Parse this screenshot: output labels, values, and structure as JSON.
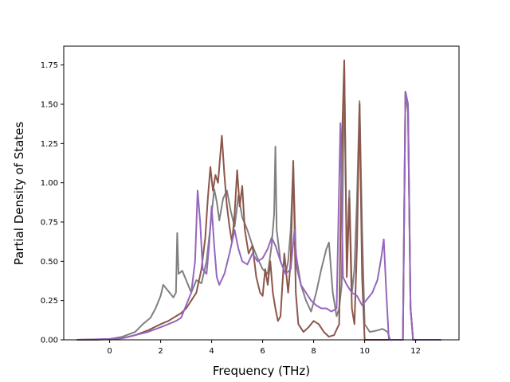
{
  "chart_data": {
    "type": "line",
    "title": "",
    "xlabel": "Frequency (THz)",
    "ylabel": "Partial Density of States",
    "xlim": [
      -1.8,
      13.7
    ],
    "ylim": [
      0,
      1.87
    ],
    "xticks": [
      0,
      2,
      4,
      6,
      8,
      10,
      12
    ],
    "yticks": [
      0.0,
      0.25,
      0.5,
      0.75,
      1.0,
      1.25,
      1.5,
      1.75
    ],
    "xtick_labels": [
      "0",
      "2",
      "4",
      "6",
      "8",
      "10",
      "12"
    ],
    "ytick_labels": [
      "0.00",
      "0.25",
      "0.50",
      "0.75",
      "1.00",
      "1.25",
      "1.50",
      "1.75"
    ],
    "grid": false,
    "legend": "none",
    "series": [
      {
        "color": "#808080",
        "points": [
          [
            -1.3,
            0
          ],
          [
            -0.5,
            0
          ],
          [
            0,
            0.005
          ],
          [
            0.5,
            0.02
          ],
          [
            1.0,
            0.05
          ],
          [
            1.3,
            0.1
          ],
          [
            1.6,
            0.14
          ],
          [
            1.8,
            0.2
          ],
          [
            2.0,
            0.28
          ],
          [
            2.1,
            0.35
          ],
          [
            2.3,
            0.31
          ],
          [
            2.5,
            0.27
          ],
          [
            2.6,
            0.3
          ],
          [
            2.65,
            0.68
          ],
          [
            2.7,
            0.42
          ],
          [
            2.85,
            0.44
          ],
          [
            3.0,
            0.38
          ],
          [
            3.2,
            0.3
          ],
          [
            3.4,
            0.38
          ],
          [
            3.6,
            0.36
          ],
          [
            3.8,
            0.5
          ],
          [
            3.95,
            0.72
          ],
          [
            4.1,
            0.96
          ],
          [
            4.2,
            0.88
          ],
          [
            4.3,
            0.76
          ],
          [
            4.45,
            0.9
          ],
          [
            4.6,
            0.95
          ],
          [
            4.75,
            0.82
          ],
          [
            4.9,
            0.72
          ],
          [
            5.05,
            0.92
          ],
          [
            5.2,
            0.78
          ],
          [
            5.4,
            0.7
          ],
          [
            5.6,
            0.6
          ],
          [
            5.8,
            0.52
          ],
          [
            6.0,
            0.45
          ],
          [
            6.2,
            0.42
          ],
          [
            6.35,
            0.6
          ],
          [
            6.45,
            0.8
          ],
          [
            6.5,
            1.23
          ],
          [
            6.55,
            0.7
          ],
          [
            6.7,
            0.5
          ],
          [
            6.9,
            0.42
          ],
          [
            7.0,
            0.5
          ],
          [
            7.1,
            0.7
          ],
          [
            7.2,
            1.12
          ],
          [
            7.3,
            0.55
          ],
          [
            7.5,
            0.35
          ],
          [
            7.7,
            0.25
          ],
          [
            7.9,
            0.18
          ],
          [
            8.1,
            0.3
          ],
          [
            8.3,
            0.45
          ],
          [
            8.5,
            0.58
          ],
          [
            8.6,
            0.62
          ],
          [
            8.75,
            0.3
          ],
          [
            8.9,
            0.15
          ],
          [
            9.0,
            0.2
          ],
          [
            9.1,
            0.35
          ],
          [
            9.2,
            1.75
          ],
          [
            9.3,
            0.5
          ],
          [
            9.4,
            0.95
          ],
          [
            9.5,
            0.3
          ],
          [
            9.6,
            0.45
          ],
          [
            9.7,
            0.9
          ],
          [
            9.8,
            1.52
          ],
          [
            9.9,
            0.7
          ],
          [
            10.0,
            0.1
          ],
          [
            10.2,
            0.05
          ],
          [
            10.5,
            0.06
          ],
          [
            10.7,
            0.07
          ],
          [
            10.9,
            0.05
          ],
          [
            11.0,
            0.0
          ],
          [
            11.5,
            0.0
          ],
          [
            11.6,
            1.58
          ],
          [
            11.7,
            1.45
          ],
          [
            11.8,
            0.2
          ],
          [
            11.9,
            0.0
          ],
          [
            13.0,
            0.0
          ]
        ]
      },
      {
        "color": "#8c564b",
        "points": [
          [
            -1.3,
            0
          ],
          [
            0,
            0.005
          ],
          [
            0.5,
            0.01
          ],
          [
            1.0,
            0.03
          ],
          [
            1.5,
            0.06
          ],
          [
            2.0,
            0.1
          ],
          [
            2.3,
            0.12
          ],
          [
            2.6,
            0.15
          ],
          [
            2.8,
            0.17
          ],
          [
            3.0,
            0.2
          ],
          [
            3.2,
            0.25
          ],
          [
            3.4,
            0.3
          ],
          [
            3.6,
            0.45
          ],
          [
            3.75,
            0.65
          ],
          [
            3.85,
            0.9
          ],
          [
            3.95,
            1.1
          ],
          [
            4.05,
            0.95
          ],
          [
            4.15,
            1.05
          ],
          [
            4.25,
            1.0
          ],
          [
            4.4,
            1.3
          ],
          [
            4.5,
            1.05
          ],
          [
            4.6,
            0.85
          ],
          [
            4.7,
            0.72
          ],
          [
            4.8,
            0.62
          ],
          [
            4.9,
            0.8
          ],
          [
            5.0,
            1.08
          ],
          [
            5.1,
            0.85
          ],
          [
            5.2,
            0.98
          ],
          [
            5.3,
            0.7
          ],
          [
            5.45,
            0.55
          ],
          [
            5.6,
            0.6
          ],
          [
            5.75,
            0.4
          ],
          [
            5.9,
            0.3
          ],
          [
            6.0,
            0.28
          ],
          [
            6.1,
            0.45
          ],
          [
            6.2,
            0.35
          ],
          [
            6.3,
            0.5
          ],
          [
            6.4,
            0.3
          ],
          [
            6.5,
            0.2
          ],
          [
            6.6,
            0.12
          ],
          [
            6.7,
            0.15
          ],
          [
            6.85,
            0.55
          ],
          [
            7.0,
            0.3
          ],
          [
            7.1,
            0.5
          ],
          [
            7.2,
            1.14
          ],
          [
            7.3,
            0.3
          ],
          [
            7.4,
            0.1
          ],
          [
            7.6,
            0.05
          ],
          [
            7.8,
            0.08
          ],
          [
            8.0,
            0.12
          ],
          [
            8.2,
            0.1
          ],
          [
            8.4,
            0.05
          ],
          [
            8.6,
            0.02
          ],
          [
            8.8,
            0.03
          ],
          [
            9.0,
            0.1
          ],
          [
            9.1,
            1.2
          ],
          [
            9.2,
            1.78
          ],
          [
            9.3,
            0.4
          ],
          [
            9.4,
            0.9
          ],
          [
            9.5,
            0.2
          ],
          [
            9.6,
            0.1
          ],
          [
            9.7,
            0.6
          ],
          [
            9.8,
            1.5
          ],
          [
            9.9,
            0.4
          ],
          [
            10.0,
            0.0
          ],
          [
            11.5,
            0.0
          ],
          [
            11.6,
            1.58
          ],
          [
            11.7,
            1.5
          ],
          [
            11.8,
            0.2
          ],
          [
            11.9,
            0.0
          ],
          [
            13.0,
            0.0
          ]
        ]
      },
      {
        "color": "#9467bd",
        "points": [
          [
            -1.3,
            0
          ],
          [
            0,
            0.005
          ],
          [
            0.5,
            0.01
          ],
          [
            1.0,
            0.03
          ],
          [
            1.5,
            0.05
          ],
          [
            2.0,
            0.08
          ],
          [
            2.3,
            0.1
          ],
          [
            2.6,
            0.12
          ],
          [
            2.8,
            0.14
          ],
          [
            3.0,
            0.22
          ],
          [
            3.2,
            0.3
          ],
          [
            3.35,
            0.5
          ],
          [
            3.45,
            0.95
          ],
          [
            3.55,
            0.75
          ],
          [
            3.65,
            0.45
          ],
          [
            3.8,
            0.42
          ],
          [
            3.9,
            0.6
          ],
          [
            4.0,
            0.85
          ],
          [
            4.1,
            0.6
          ],
          [
            4.2,
            0.4
          ],
          [
            4.3,
            0.35
          ],
          [
            4.5,
            0.42
          ],
          [
            4.7,
            0.55
          ],
          [
            4.9,
            0.7
          ],
          [
            5.05,
            0.58
          ],
          [
            5.2,
            0.5
          ],
          [
            5.4,
            0.48
          ],
          [
            5.6,
            0.55
          ],
          [
            5.8,
            0.5
          ],
          [
            6.0,
            0.52
          ],
          [
            6.2,
            0.58
          ],
          [
            6.35,
            0.65
          ],
          [
            6.5,
            0.6
          ],
          [
            6.7,
            0.5
          ],
          [
            6.9,
            0.42
          ],
          [
            7.1,
            0.45
          ],
          [
            7.25,
            0.7
          ],
          [
            7.35,
            0.45
          ],
          [
            7.5,
            0.35
          ],
          [
            7.7,
            0.3
          ],
          [
            7.9,
            0.25
          ],
          [
            8.1,
            0.22
          ],
          [
            8.3,
            0.2
          ],
          [
            8.5,
            0.2
          ],
          [
            8.7,
            0.18
          ],
          [
            8.9,
            0.2
          ],
          [
            9.05,
            1.38
          ],
          [
            9.15,
            0.4
          ],
          [
            9.3,
            0.35
          ],
          [
            9.5,
            0.3
          ],
          [
            9.7,
            0.28
          ],
          [
            9.9,
            0.22
          ],
          [
            10.1,
            0.26
          ],
          [
            10.3,
            0.3
          ],
          [
            10.5,
            0.38
          ],
          [
            10.65,
            0.52
          ],
          [
            10.75,
            0.64
          ],
          [
            10.85,
            0.3
          ],
          [
            10.95,
            0.0
          ],
          [
            11.5,
            0.0
          ],
          [
            11.6,
            1.58
          ],
          [
            11.7,
            1.5
          ],
          [
            11.8,
            0.2
          ],
          [
            11.9,
            0.0
          ],
          [
            13.0,
            0.0
          ]
        ]
      }
    ]
  }
}
